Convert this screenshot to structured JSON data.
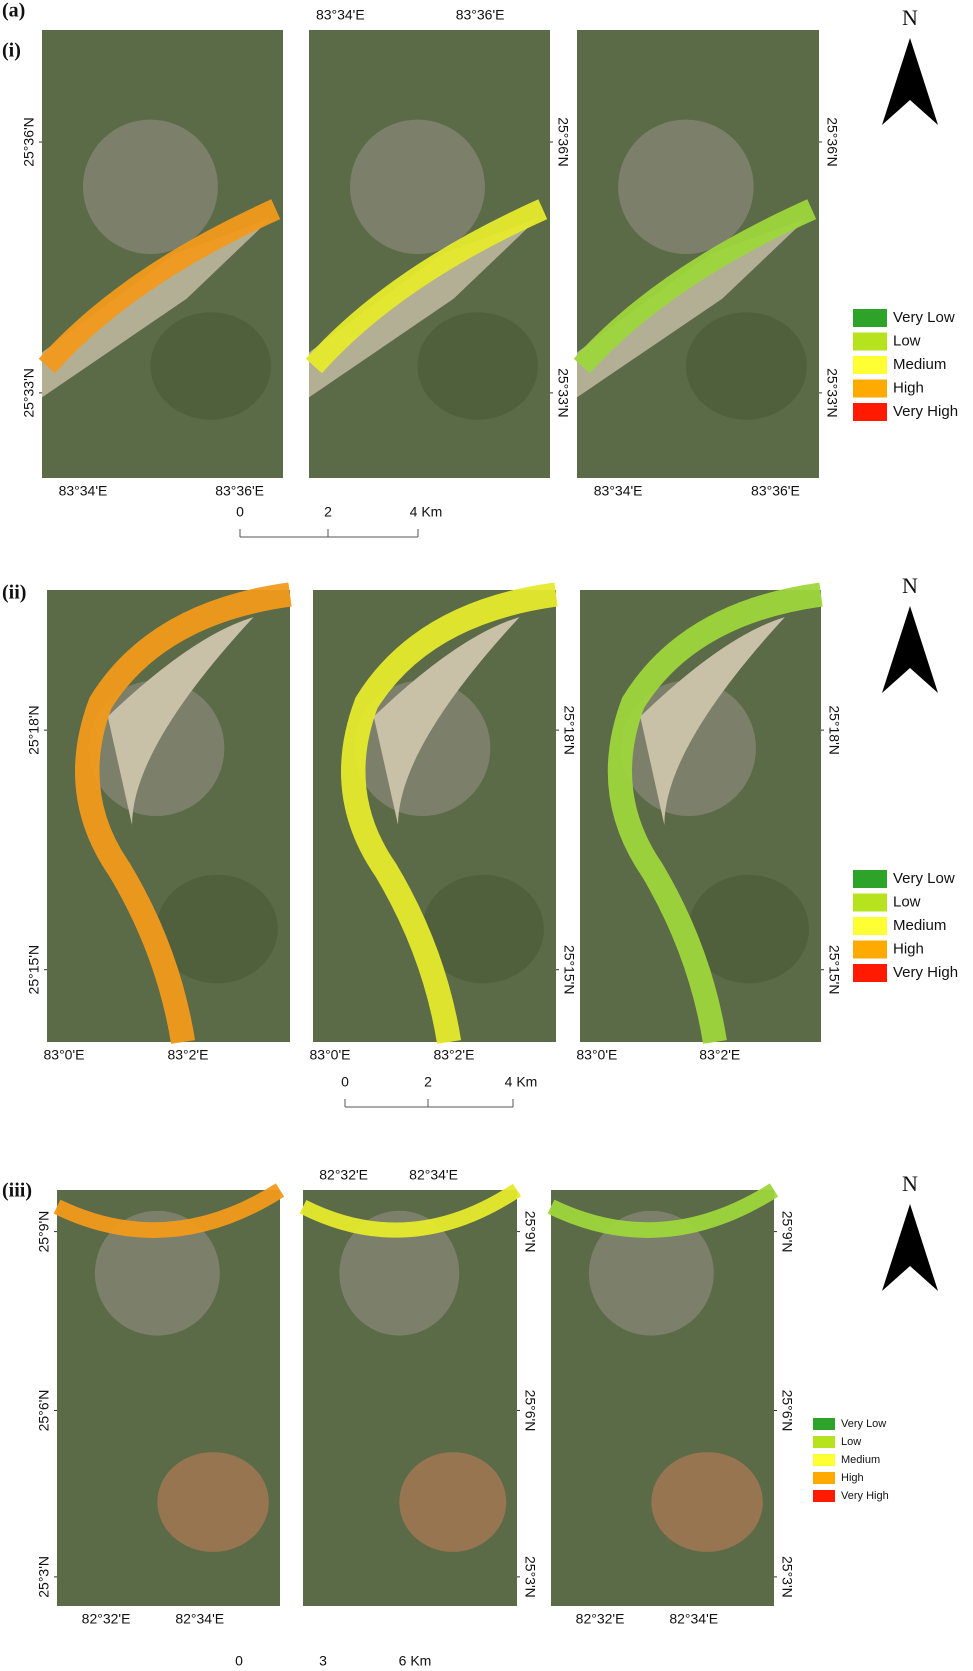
{
  "figure_label": "(a)",
  "panels": [
    {
      "label": "(i)",
      "north": "N",
      "top_lon_labels": [
        "83°34'E",
        "83°36'E"
      ],
      "maps": [
        {
          "lat_labels": [
            "25°36'N",
            "25°33'N"
          ],
          "lon_labels": [
            "83°34'E",
            "83°36'E"
          ]
        },
        {
          "lat_labels": [
            "25°36'N",
            "25°33'N"
          ]
        },
        {
          "lat_labels": [
            "25°36'N",
            "25°33'N"
          ],
          "lon_labels": [
            "83°34'E",
            "83°36'E"
          ]
        }
      ],
      "scale": [
        "0",
        "2",
        "4 Km"
      ],
      "legend": [
        {
          "name": "Very Low",
          "color": "#2ea32a"
        },
        {
          "name": "Low",
          "color": "#b6e31e"
        },
        {
          "name": "Medium",
          "color": "#ffff33"
        },
        {
          "name": "High",
          "color": "#ffaa00"
        },
        {
          "name": "Very High",
          "color": "#ff1a00"
        }
      ]
    },
    {
      "label": "(ii)",
      "north": "N",
      "maps": [
        {
          "lat_labels": [
            "25°18'N",
            "25°15'N"
          ],
          "lon_labels": [
            "83°0'E",
            "83°2'E"
          ]
        },
        {
          "lat_labels": [
            "25°18'N",
            "25°15'N"
          ],
          "lon_labels": [
            "83°0'E",
            "83°2'E"
          ]
        },
        {
          "lat_labels": [
            "25°18'N",
            "25°15'N"
          ],
          "lon_labels": [
            "83°0'E",
            "83°2'E"
          ]
        }
      ],
      "scale": [
        "0",
        "2",
        "4 Km"
      ],
      "legend": [
        {
          "name": "Very Low",
          "color": "#2ea32a"
        },
        {
          "name": "Low",
          "color": "#b6e31e"
        },
        {
          "name": "Medium",
          "color": "#ffff33"
        },
        {
          "name": "High",
          "color": "#ffaa00"
        },
        {
          "name": "Very High",
          "color": "#ff1a00"
        }
      ]
    },
    {
      "label": "(iii)",
      "north": "N",
      "top_lon_labels": [
        "82°32'E",
        "82°34'E"
      ],
      "maps": [
        {
          "lat_labels": [
            "25°9'N",
            "25°6'N",
            "25°3'N"
          ],
          "lon_labels": [
            "82°32'E",
            "82°34'E"
          ]
        },
        {
          "lat_labels": [
            "25°9'N",
            "25°6'N",
            "25°3'N"
          ]
        },
        {
          "lat_labels": [
            "25°9'N",
            "25°6'N",
            "25°3'N"
          ],
          "lon_labels": [
            "82°32'E",
            "82°34'E"
          ]
        }
      ],
      "scale": [
        "0",
        "3",
        "6 Km"
      ],
      "legend": [
        {
          "name": "Very Low",
          "color": "#2ea32a"
        },
        {
          "name": "Low",
          "color": "#b6e31e"
        },
        {
          "name": "Medium",
          "color": "#ffff33"
        },
        {
          "name": "High",
          "color": "#ffaa00"
        },
        {
          "name": "Very High",
          "color": "#ff1a00"
        }
      ]
    }
  ]
}
